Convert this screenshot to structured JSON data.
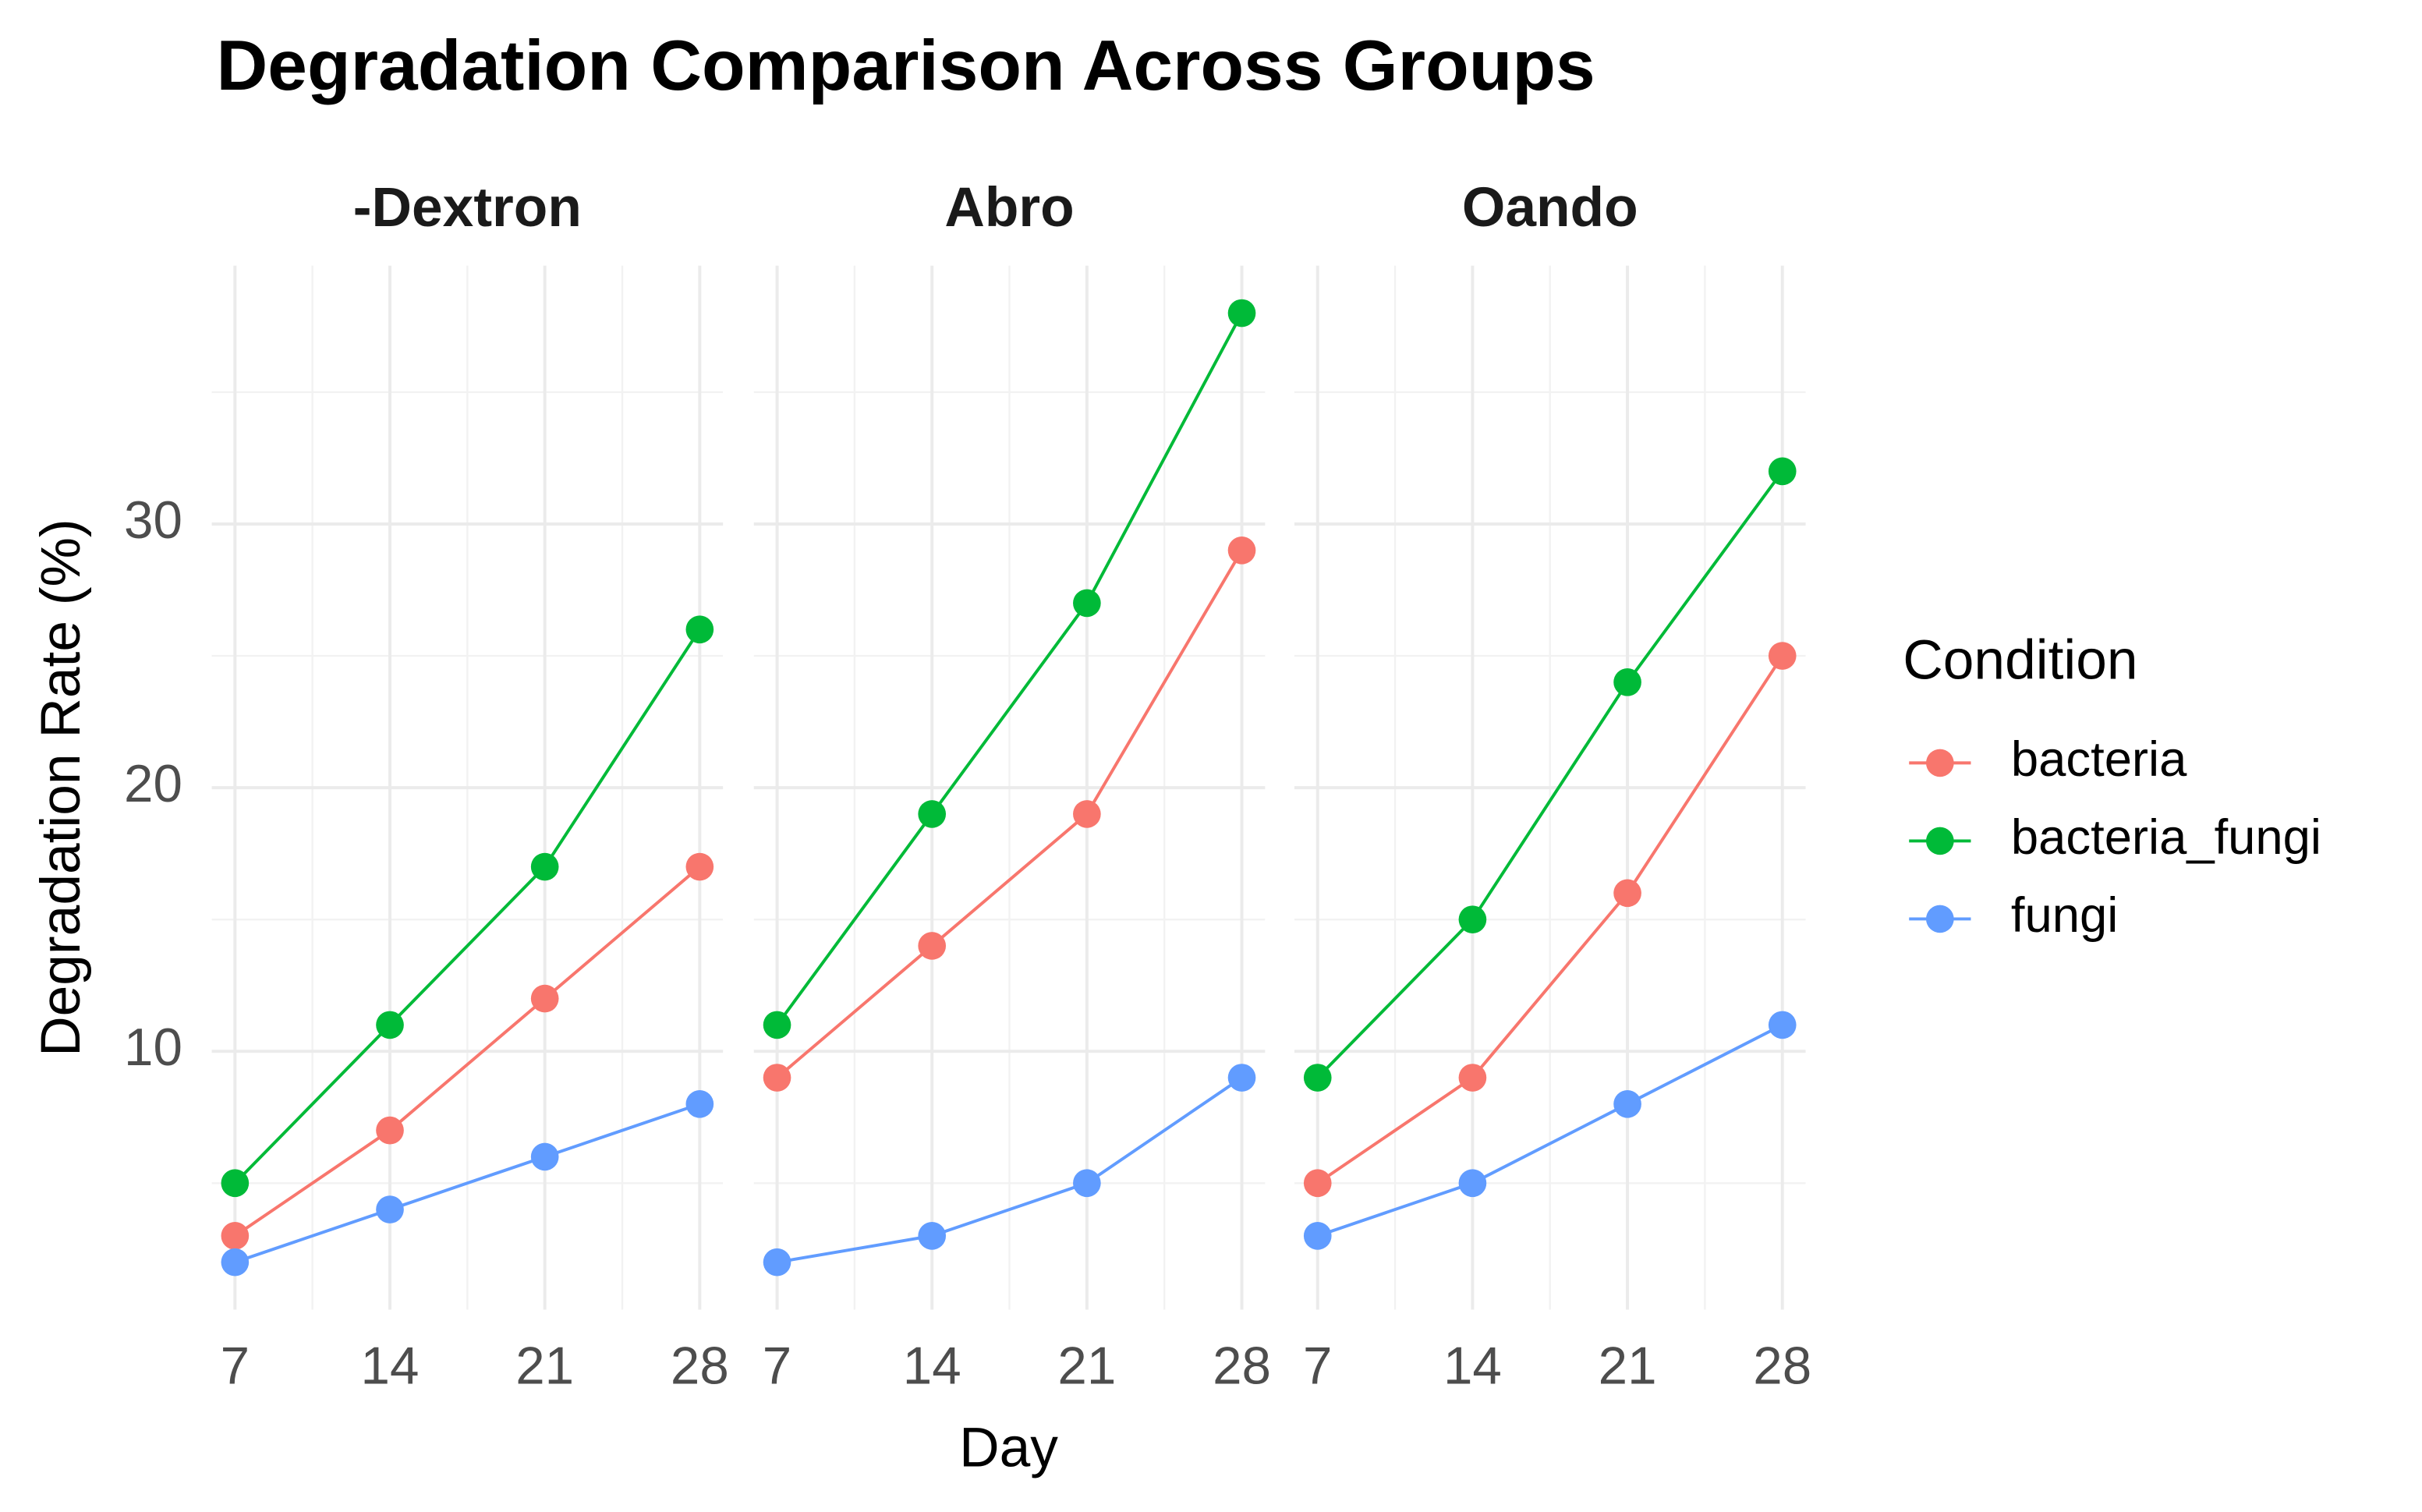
{
  "title": "Degradation Comparison Across Groups",
  "x_label": "Day",
  "y_label": "Degradation Rate (%)",
  "legend_title": "Condition",
  "chart_data": [
    {
      "type": "line",
      "title": "-Dextron",
      "x": [
        7,
        14,
        21,
        28
      ],
      "xlim": [
        5.95,
        29.05
      ],
      "xticks": [
        7,
        14,
        21,
        28
      ],
      "ylim": [
        0.2,
        39.8
      ],
      "yticks": [
        10,
        20,
        30
      ],
      "grid": true,
      "series": [
        {
          "name": "bacteria",
          "color": "#F8766D",
          "values": [
            3,
            7,
            12,
            17
          ]
        },
        {
          "name": "bacteria_fungi",
          "color": "#00BA38",
          "values": [
            5,
            11,
            17,
            26
          ]
        },
        {
          "name": "fungi",
          "color": "#619CFF",
          "values": [
            2,
            4,
            6,
            8
          ]
        }
      ]
    },
    {
      "type": "line",
      "title": "Abro",
      "x": [
        7,
        14,
        21,
        28
      ],
      "xlim": [
        5.95,
        29.05
      ],
      "xticks": [
        7,
        14,
        21,
        28
      ],
      "ylim": [
        0.2,
        39.8
      ],
      "yticks": [
        10,
        20,
        30
      ],
      "grid": true,
      "series": [
        {
          "name": "bacteria",
          "color": "#F8766D",
          "values": [
            9,
            14,
            19,
            29
          ]
        },
        {
          "name": "bacteria_fungi",
          "color": "#00BA38",
          "values": [
            11,
            19,
            27,
            38
          ]
        },
        {
          "name": "fungi",
          "color": "#619CFF",
          "values": [
            2,
            3,
            5,
            9
          ]
        }
      ]
    },
    {
      "type": "line",
      "title": "Oando",
      "x": [
        7,
        14,
        21,
        28
      ],
      "xlim": [
        5.95,
        29.05
      ],
      "xticks": [
        7,
        14,
        21,
        28
      ],
      "ylim": [
        0.2,
        39.8
      ],
      "yticks": [
        10,
        20,
        30
      ],
      "grid": true,
      "series": [
        {
          "name": "bacteria",
          "color": "#F8766D",
          "values": [
            5,
            9,
            16,
            25
          ]
        },
        {
          "name": "bacteria_fungi",
          "color": "#00BA38",
          "values": [
            9,
            15,
            24,
            32
          ]
        },
        {
          "name": "fungi",
          "color": "#619CFF",
          "values": [
            3,
            5,
            8,
            11
          ]
        }
      ]
    }
  ]
}
